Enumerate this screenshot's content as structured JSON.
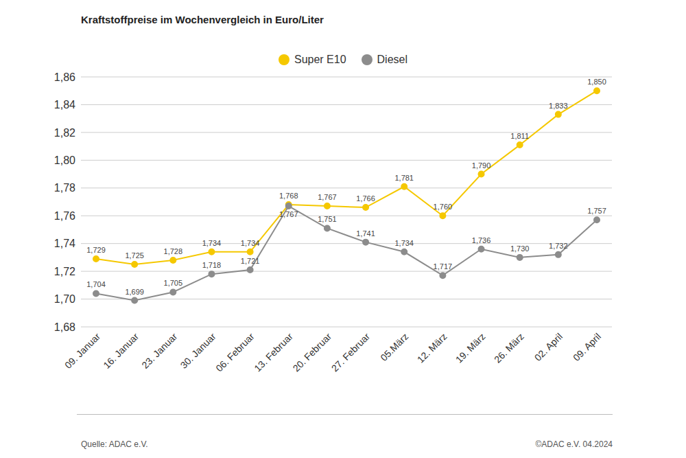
{
  "chart_data": {
    "type": "line",
    "title": "Kraftstoffpreise im Wochenvergleich in Euro/Liter",
    "categories": [
      "09. Januar",
      "16. Januar",
      "23. Januar",
      "30. Januar",
      "06. Februar",
      "13. Februar",
      "20. Februar",
      "27. Februar",
      "05.März",
      "12. März",
      "19. März",
      "26. März",
      "02. April",
      "09. April"
    ],
    "series": [
      {
        "name": "Super E10",
        "color": "#f5c800",
        "marker": "circle",
        "values": [
          1.729,
          1.725,
          1.728,
          1.734,
          1.734,
          1.768,
          1.767,
          1.766,
          1.781,
          1.76,
          1.79,
          1.811,
          1.833,
          1.85
        ],
        "value_labels": [
          "1,729",
          "1,725",
          "1,728",
          "1,734",
          "1,734",
          "1,768",
          "1,767",
          "1,766",
          "1,781",
          "1,760",
          "1,790",
          "1,811",
          "1,833",
          "1,850"
        ]
      },
      {
        "name": "Diesel",
        "color": "#8c8c8c",
        "marker": "circle",
        "values": [
          1.704,
          1.699,
          1.705,
          1.718,
          1.721,
          1.767,
          1.751,
          1.741,
          1.734,
          1.717,
          1.736,
          1.73,
          1.732,
          1.757
        ],
        "value_labels": [
          "1,704",
          "1,699",
          "1,705",
          "1,718",
          "1,721",
          "1,767",
          "1,751",
          "1,741",
          "1,734",
          "1,717",
          "1,736",
          "1,730",
          "1,732",
          "1,757"
        ]
      }
    ],
    "ylim": [
      1.68,
      1.86
    ],
    "yticks": [
      {
        "value": 1.68,
        "label": "1,68"
      },
      {
        "value": 1.7,
        "label": "1,70"
      },
      {
        "value": 1.72,
        "label": "1,72"
      },
      {
        "value": 1.74,
        "label": "1,74"
      },
      {
        "value": 1.76,
        "label": "1,76"
      },
      {
        "value": 1.78,
        "label": "1,78"
      },
      {
        "value": 1.8,
        "label": "1,80"
      },
      {
        "value": 1.82,
        "label": "1,82"
      },
      {
        "value": 1.84,
        "label": "1,84"
      },
      {
        "value": 1.86,
        "label": "1,86"
      }
    ],
    "grid": true,
    "legend": "top",
    "data_labels": true,
    "annotations": [
      "Quelle: ADAC e.V.",
      "©ADAC e.V. 04.2024"
    ]
  }
}
